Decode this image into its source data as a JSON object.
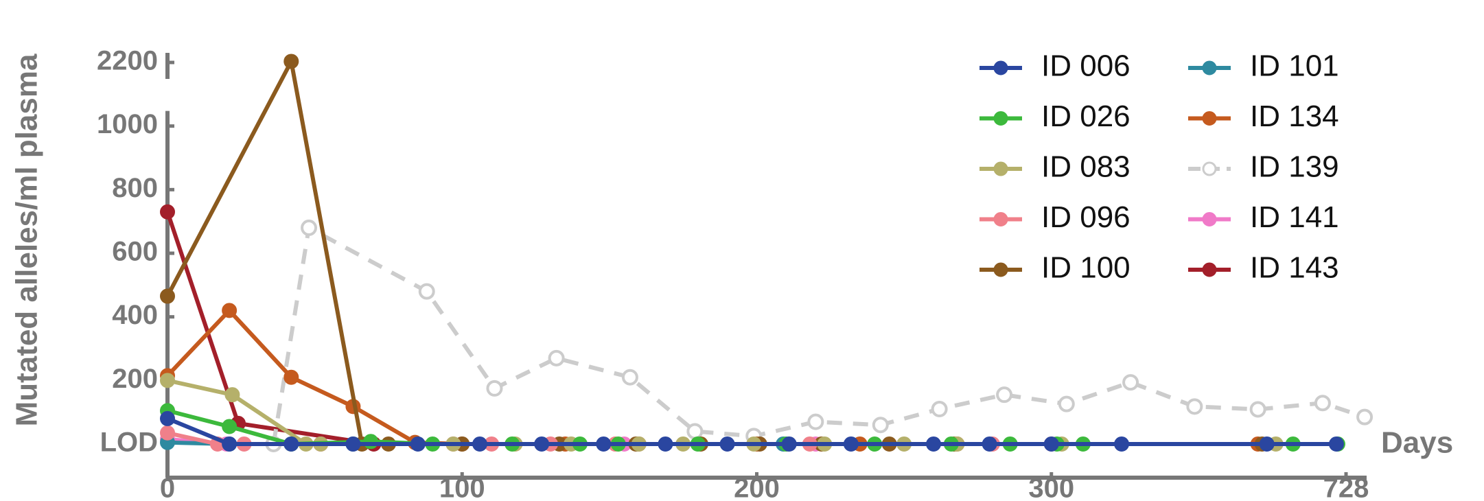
{
  "chart_data": {
    "type": "line",
    "y_label": "Mutated alleles/ml plasma",
    "x_label": "Days",
    "xlim": [
      0,
      760
    ],
    "ylim": [
      0,
      2200
    ],
    "xticks": [
      0,
      100,
      200,
      300,
      728
    ],
    "yticks": [
      {
        "value": 0,
        "label": "LOD"
      },
      200,
      400,
      600,
      800,
      1000,
      2200
    ],
    "legend": "upper right",
    "series": [
      {
        "name": "ID 006",
        "color": "#2a46a0",
        "x": [
          0,
          21,
          42,
          63,
          85,
          106,
          127,
          148,
          169,
          190,
          211,
          232,
          260,
          279,
          300,
          402,
          613,
          714
        ],
        "values": [
          80,
          0,
          0,
          0,
          0,
          0,
          0,
          0,
          0,
          0,
          0,
          0,
          0,
          0,
          0,
          0,
          0,
          0
        ]
      },
      {
        "name": "ID 026",
        "color": "#3cb93c",
        "x": [
          0,
          21,
          42,
          69,
          90,
          117,
          140,
          153,
          180,
          210,
          240,
          266,
          286,
          308,
          346,
          651,
          716
        ],
        "values": [
          105,
          55,
          0,
          8,
          0,
          0,
          0,
          0,
          0,
          0,
          0,
          0,
          0,
          0,
          0,
          0,
          0
        ]
      },
      {
        "name": "ID 083",
        "color": "#b5b06a",
        "x": [
          0,
          22,
          47,
          52,
          97,
          118,
          137,
          160,
          175,
          199,
          223,
          250,
          268,
          315,
          626
        ],
        "values": [
          200,
          155,
          0,
          0,
          0,
          0,
          0,
          0,
          0,
          0,
          0,
          0,
          0,
          0,
          0
        ]
      },
      {
        "name": "ID 096",
        "color": "#f0808a",
        "x": [
          0,
          17,
          26,
          52,
          97,
          110,
          130,
          152,
          218,
          280,
          300
        ],
        "values": [
          35,
          0,
          0,
          0,
          0,
          0,
          0,
          0,
          0,
          0,
          0
        ]
      },
      {
        "name": "ID 100",
        "color": "#8b5a1e",
        "x": [
          0,
          42,
          66,
          75,
          100,
          133,
          159,
          181,
          201,
          222,
          245,
          267,
          606
        ],
        "values": [
          465,
          2220,
          0,
          0,
          0,
          0,
          0,
          0,
          0,
          0,
          0,
          0,
          0
        ]
      },
      {
        "name": "ID 101",
        "color": "#2e8aa0",
        "x": [
          0,
          21,
          63,
          209
        ],
        "values": [
          5,
          0,
          0,
          0
        ]
      },
      {
        "name": "ID 134",
        "color": "#c55a1e",
        "x": [
          0,
          21,
          42,
          63,
          84,
          100,
          135,
          160,
          200,
          235,
          268,
          600
        ],
        "values": [
          215,
          420,
          210,
          118,
          5,
          0,
          0,
          0,
          0,
          0,
          0,
          0
        ]
      },
      {
        "name": "ID 139",
        "color": "#cccccc",
        "line_style": "dashed",
        "marker_fill": "none",
        "x": [
          36,
          48,
          88,
          111,
          132,
          157,
          179,
          199,
          220,
          242,
          262,
          284,
          322,
          415,
          508,
          600,
          694,
          755
        ],
        "values": [
          0,
          680,
          480,
          175,
          270,
          210,
          40,
          25,
          70,
          60,
          110,
          155,
          126,
          194,
          118,
          109,
          129,
          85
        ]
      },
      {
        "name": "ID 141",
        "color": "#f07ac8",
        "x": [
          0,
          20,
          52,
          155,
          220
        ],
        "values": [
          15,
          0,
          0,
          0,
          0
        ]
      },
      {
        "name": "ID 143",
        "color": "#a31f2a",
        "x": [
          0,
          24,
          70
        ],
        "values": [
          730,
          65,
          0
        ]
      }
    ]
  }
}
